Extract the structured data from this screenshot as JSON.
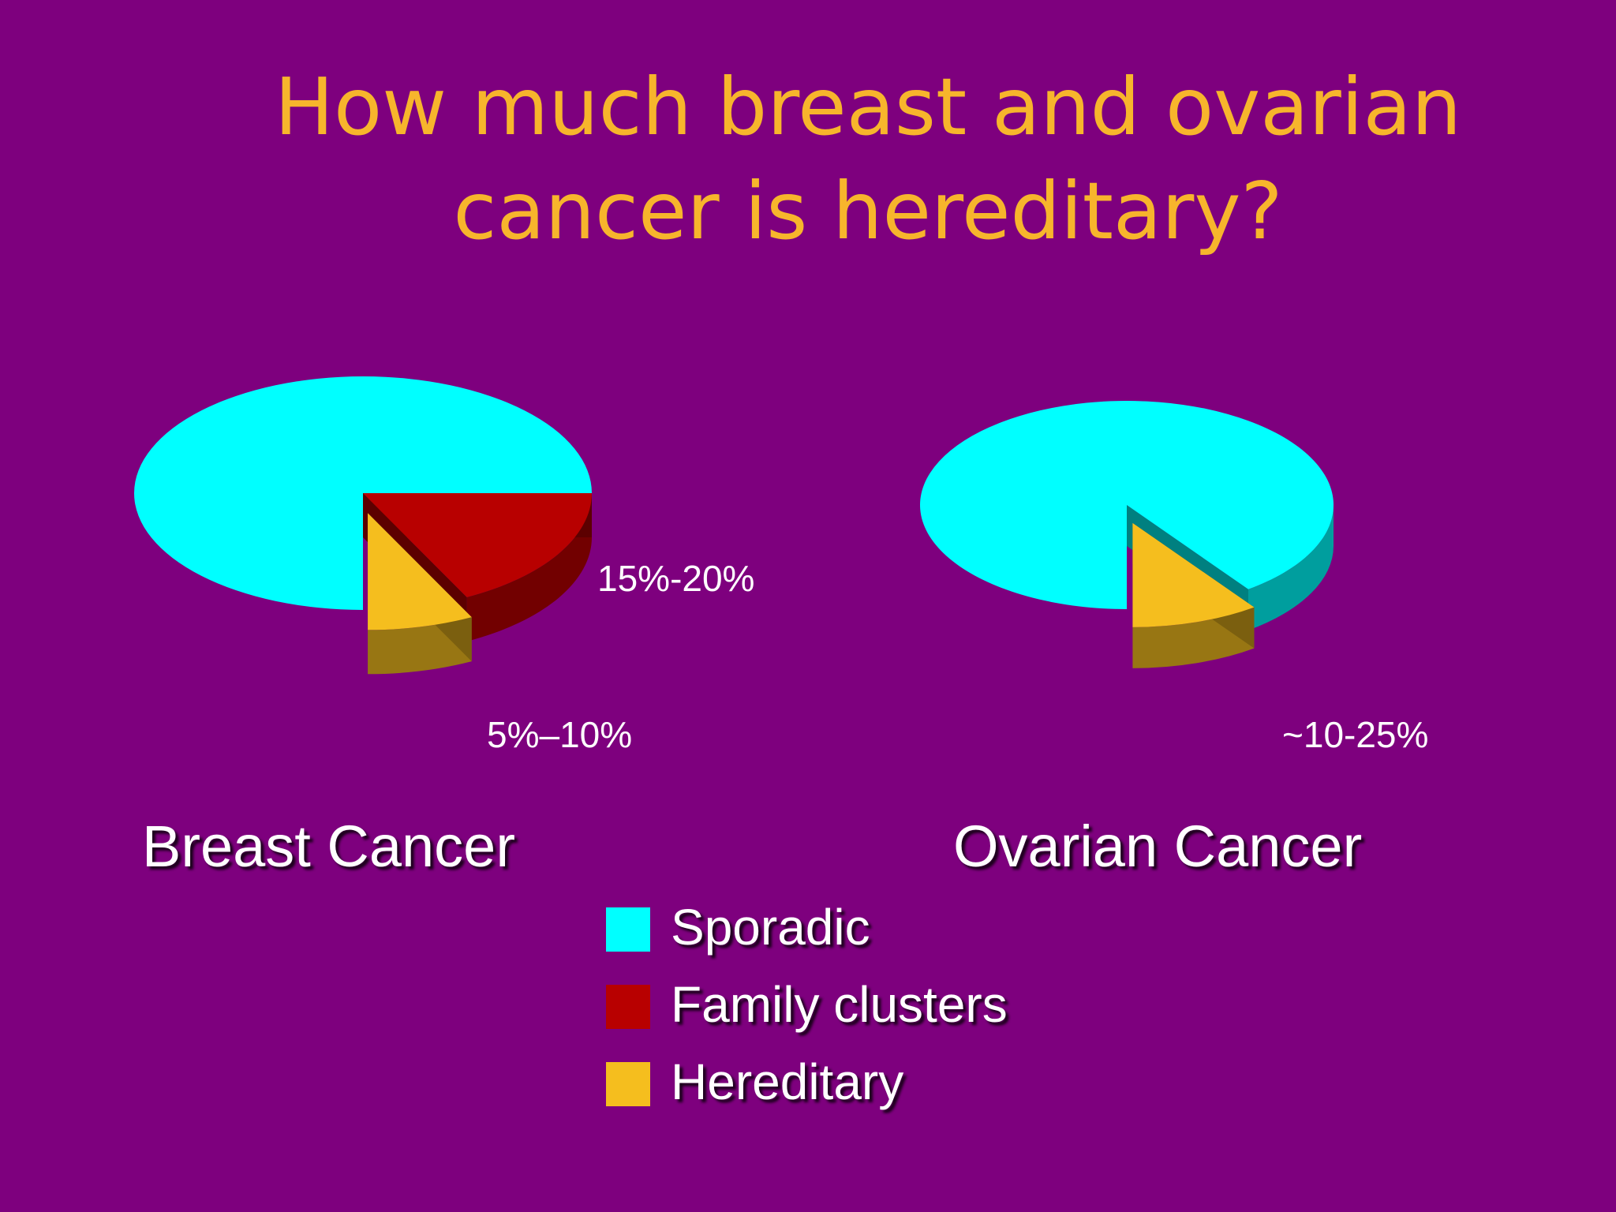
{
  "title": {
    "line1": "How much breast and ovarian",
    "line2": "cancer is hereditary?"
  },
  "colors": {
    "background": "#7e007e",
    "title": "#f7b52c",
    "sporadic": "#00ffff",
    "family_clusters": "#b80000",
    "hereditary": "#f5be1e"
  },
  "legend": [
    {
      "label": "Sporadic",
      "color": "#00ffff"
    },
    {
      "label": "Family clusters",
      "color": "#b80000"
    },
    {
      "label": "Hereditary",
      "color": "#f5be1e"
    }
  ],
  "chart_data": [
    {
      "type": "pie",
      "title": "Breast Cancer",
      "categories": [
        "Sporadic",
        "Family clusters",
        "Hereditary"
      ],
      "values": [
        75,
        17.5,
        7.5
      ],
      "exploded": [
        "Hereditary"
      ],
      "data_labels": {
        "Family clusters": "15%-20%",
        "Hereditary": "5%–10%"
      }
    },
    {
      "type": "pie",
      "title": "Ovarian Cancer",
      "categories": [
        "Sporadic",
        "Hereditary"
      ],
      "values": [
        90,
        10
      ],
      "exploded": [
        "Hereditary"
      ],
      "data_labels": {
        "Hereditary": "~10-25%"
      }
    }
  ]
}
